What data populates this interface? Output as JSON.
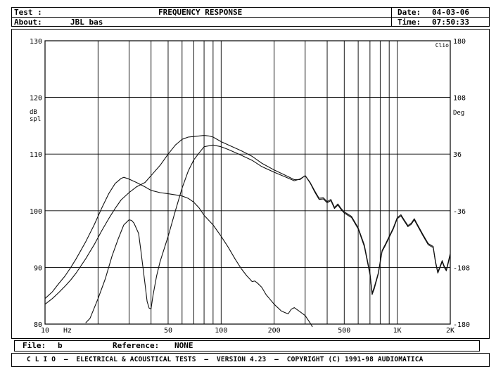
{
  "header": {
    "test_label": "Test :",
    "about_label": "About:",
    "about_value": "JBL bas",
    "title": "FREQUENCY RESPONSE",
    "date_label": "Date:",
    "date_value": "04-03-06",
    "time_label": "Time:",
    "time_value": "07:50:33"
  },
  "footer": {
    "file_label": "File:",
    "file_value": "b",
    "reference_label": "Reference:",
    "reference_value": "NONE",
    "credits": "C L I O  –  ELECTRICAL & ACOUSTICAL TESTS  –  VERSION 4.23  –  COPYRIGHT (C) 1991-98 AUDIOMATICA"
  },
  "chart_data": {
    "type": "line",
    "title": "FREQUENCY RESPONSE",
    "xscale": "log",
    "xlim": [
      10,
      2000
    ],
    "ylim": [
      80,
      130
    ],
    "y2lim": [
      -180,
      180
    ],
    "grid": true,
    "corner_label": "Clio",
    "ylabel": "dB spl",
    "y2label": "Deg",
    "xunit_label": "Hz",
    "x_tick_labels": [
      {
        "value": 10,
        "text": "10"
      },
      {
        "value": 50,
        "text": "50"
      },
      {
        "value": 100,
        "text": "100"
      },
      {
        "value": 200,
        "text": "200"
      },
      {
        "value": 500,
        "text": "500"
      },
      {
        "value": 1000,
        "text": "1K"
      },
      {
        "value": 2000,
        "text": "2K"
      }
    ],
    "y_ticks": [
      80,
      90,
      100,
      110,
      120,
      130
    ],
    "y2_ticks": [
      -180,
      -108,
      -36,
      36,
      108,
      180
    ],
    "series": [
      {
        "points": [
          [
            10,
            84.5
          ],
          [
            11,
            85.7
          ],
          [
            12,
            87.2
          ],
          [
            13,
            88.5
          ],
          [
            14,
            90
          ],
          [
            15,
            91.5
          ],
          [
            17,
            94.5
          ],
          [
            19,
            97.5
          ],
          [
            21,
            100.5
          ],
          [
            23,
            103
          ],
          [
            25,
            104.8
          ],
          [
            27,
            105.7
          ],
          [
            28,
            105.9
          ],
          [
            30,
            105.6
          ],
          [
            33,
            105
          ],
          [
            37,
            104.2
          ],
          [
            40,
            103.6
          ],
          [
            45,
            103.2
          ],
          [
            50,
            103
          ],
          [
            55,
            102.8
          ],
          [
            60,
            102.6
          ],
          [
            65,
            102.2
          ],
          [
            70,
            101.5
          ],
          [
            75,
            100.5
          ],
          [
            80,
            99.2
          ],
          [
            90,
            97.5
          ],
          [
            100,
            95.5
          ],
          [
            110,
            93.5
          ],
          [
            120,
            91.5
          ],
          [
            130,
            89.8
          ],
          [
            140,
            88.5
          ],
          [
            145,
            88
          ],
          [
            150,
            87.5
          ],
          [
            155,
            87.6
          ],
          [
            160,
            87.3
          ],
          [
            170,
            86.5
          ],
          [
            180,
            85.2
          ],
          [
            200,
            83.5
          ],
          [
            220,
            82.3
          ],
          [
            240,
            81.8
          ],
          [
            250,
            82.6
          ],
          [
            260,
            82.9
          ],
          [
            280,
            82.2
          ],
          [
            300,
            81.5
          ],
          [
            320,
            80.2
          ],
          [
            330,
            79.5
          ]
        ]
      },
      {
        "points": [
          [
            17,
            80.2
          ],
          [
            18,
            81
          ],
          [
            20,
            84.5
          ],
          [
            22,
            88
          ],
          [
            24,
            92
          ],
          [
            26,
            95
          ],
          [
            28,
            97.5
          ],
          [
            30,
            98.4
          ],
          [
            31,
            98.3
          ],
          [
            32,
            97.8
          ],
          [
            34,
            96
          ],
          [
            35,
            93
          ],
          [
            37,
            87
          ],
          [
            38,
            84
          ],
          [
            39,
            82.8
          ],
          [
            40,
            82.7
          ],
          [
            41,
            85
          ],
          [
            43,
            88.5
          ],
          [
            45,
            91
          ],
          [
            50,
            95.5
          ],
          [
            55,
            100
          ],
          [
            60,
            104
          ],
          [
            65,
            107
          ],
          [
            70,
            109
          ],
          [
            75,
            110.2
          ],
          [
            80,
            111.3
          ],
          [
            90,
            111.6
          ],
          [
            100,
            111.3
          ],
          [
            110,
            110.8
          ],
          [
            130,
            109.8
          ],
          [
            150,
            108.9
          ],
          [
            170,
            107.8
          ],
          [
            200,
            106.8
          ],
          [
            230,
            106
          ],
          [
            260,
            105.3
          ],
          [
            280,
            105.6
          ],
          [
            300,
            106.2
          ],
          [
            320,
            105
          ],
          [
            340,
            103.5
          ],
          [
            360,
            102.2
          ],
          [
            380,
            102.3
          ],
          [
            400,
            101.6
          ],
          [
            420,
            102
          ],
          [
            440,
            100.6
          ],
          [
            460,
            101.2
          ],
          [
            480,
            100.4
          ],
          [
            500,
            99.8
          ],
          [
            550,
            99
          ],
          [
            600,
            97
          ],
          [
            650,
            94
          ],
          [
            700,
            89
          ],
          [
            720,
            85.5
          ],
          [
            740,
            86.5
          ],
          [
            780,
            89
          ],
          [
            820,
            93
          ],
          [
            860,
            94.2
          ],
          [
            900,
            95.5
          ],
          [
            950,
            97
          ],
          [
            1000,
            98.8
          ],
          [
            1050,
            99.3
          ],
          [
            1100,
            98.3
          ],
          [
            1150,
            97.4
          ],
          [
            1200,
            97.8
          ],
          [
            1250,
            98.6
          ],
          [
            1300,
            97.6
          ],
          [
            1400,
            95.8
          ],
          [
            1500,
            94.2
          ],
          [
            1600,
            93.7
          ],
          [
            1650,
            91
          ],
          [
            1700,
            89.2
          ],
          [
            1750,
            90.2
          ],
          [
            1800,
            91.2
          ],
          [
            1850,
            90.2
          ],
          [
            1900,
            89.6
          ],
          [
            1950,
            91
          ],
          [
            2000,
            92.5
          ]
        ]
      },
      {
        "points": [
          [
            10,
            83.5
          ],
          [
            11,
            84.5
          ],
          [
            12,
            85.6
          ],
          [
            13,
            86.7
          ],
          [
            14,
            87.8
          ],
          [
            15,
            89
          ],
          [
            17,
            91.5
          ],
          [
            19,
            94
          ],
          [
            21,
            96.5
          ],
          [
            23,
            98.6
          ],
          [
            25,
            100.4
          ],
          [
            27,
            101.9
          ],
          [
            30,
            103.2
          ],
          [
            33,
            104.2
          ],
          [
            37,
            105
          ],
          [
            40,
            106.2
          ],
          [
            45,
            108
          ],
          [
            50,
            110
          ],
          [
            55,
            111.6
          ],
          [
            60,
            112.6
          ],
          [
            65,
            113
          ],
          [
            70,
            113.1
          ],
          [
            75,
            113.2
          ],
          [
            80,
            113.3
          ],
          [
            85,
            113.2
          ],
          [
            90,
            113
          ],
          [
            100,
            112.2
          ],
          [
            110,
            111.6
          ],
          [
            130,
            110.6
          ],
          [
            150,
            109.6
          ],
          [
            170,
            108.4
          ],
          [
            200,
            107.2
          ],
          [
            230,
            106.3
          ],
          [
            260,
            105.5
          ],
          [
            280,
            105.5
          ],
          [
            300,
            106.2
          ],
          [
            320,
            104.9
          ],
          [
            340,
            103.3
          ],
          [
            360,
            102
          ],
          [
            380,
            102.1
          ],
          [
            400,
            101.4
          ],
          [
            420,
            101.8
          ],
          [
            440,
            100.4
          ],
          [
            460,
            101
          ],
          [
            480,
            100.2
          ],
          [
            500,
            99.6
          ],
          [
            550,
            98.8
          ],
          [
            600,
            96.8
          ],
          [
            650,
            93.7
          ],
          [
            700,
            88.7
          ],
          [
            720,
            85.2
          ],
          [
            740,
            86.2
          ],
          [
            780,
            88.8
          ],
          [
            820,
            92.8
          ],
          [
            860,
            94
          ],
          [
            900,
            95.3
          ],
          [
            950,
            96.8
          ],
          [
            1000,
            98.6
          ],
          [
            1050,
            99.1
          ],
          [
            1100,
            98.1
          ],
          [
            1150,
            97.2
          ],
          [
            1200,
            97.6
          ],
          [
            1250,
            98.4
          ],
          [
            1300,
            97.4
          ],
          [
            1400,
            95.6
          ],
          [
            1500,
            94
          ],
          [
            1600,
            93.5
          ],
          [
            1650,
            90.8
          ],
          [
            1700,
            89
          ],
          [
            1750,
            90
          ],
          [
            1800,
            91
          ],
          [
            1850,
            90
          ],
          [
            1900,
            89.4
          ],
          [
            1950,
            90.8
          ],
          [
            2000,
            92.3
          ]
        ]
      }
    ]
  }
}
